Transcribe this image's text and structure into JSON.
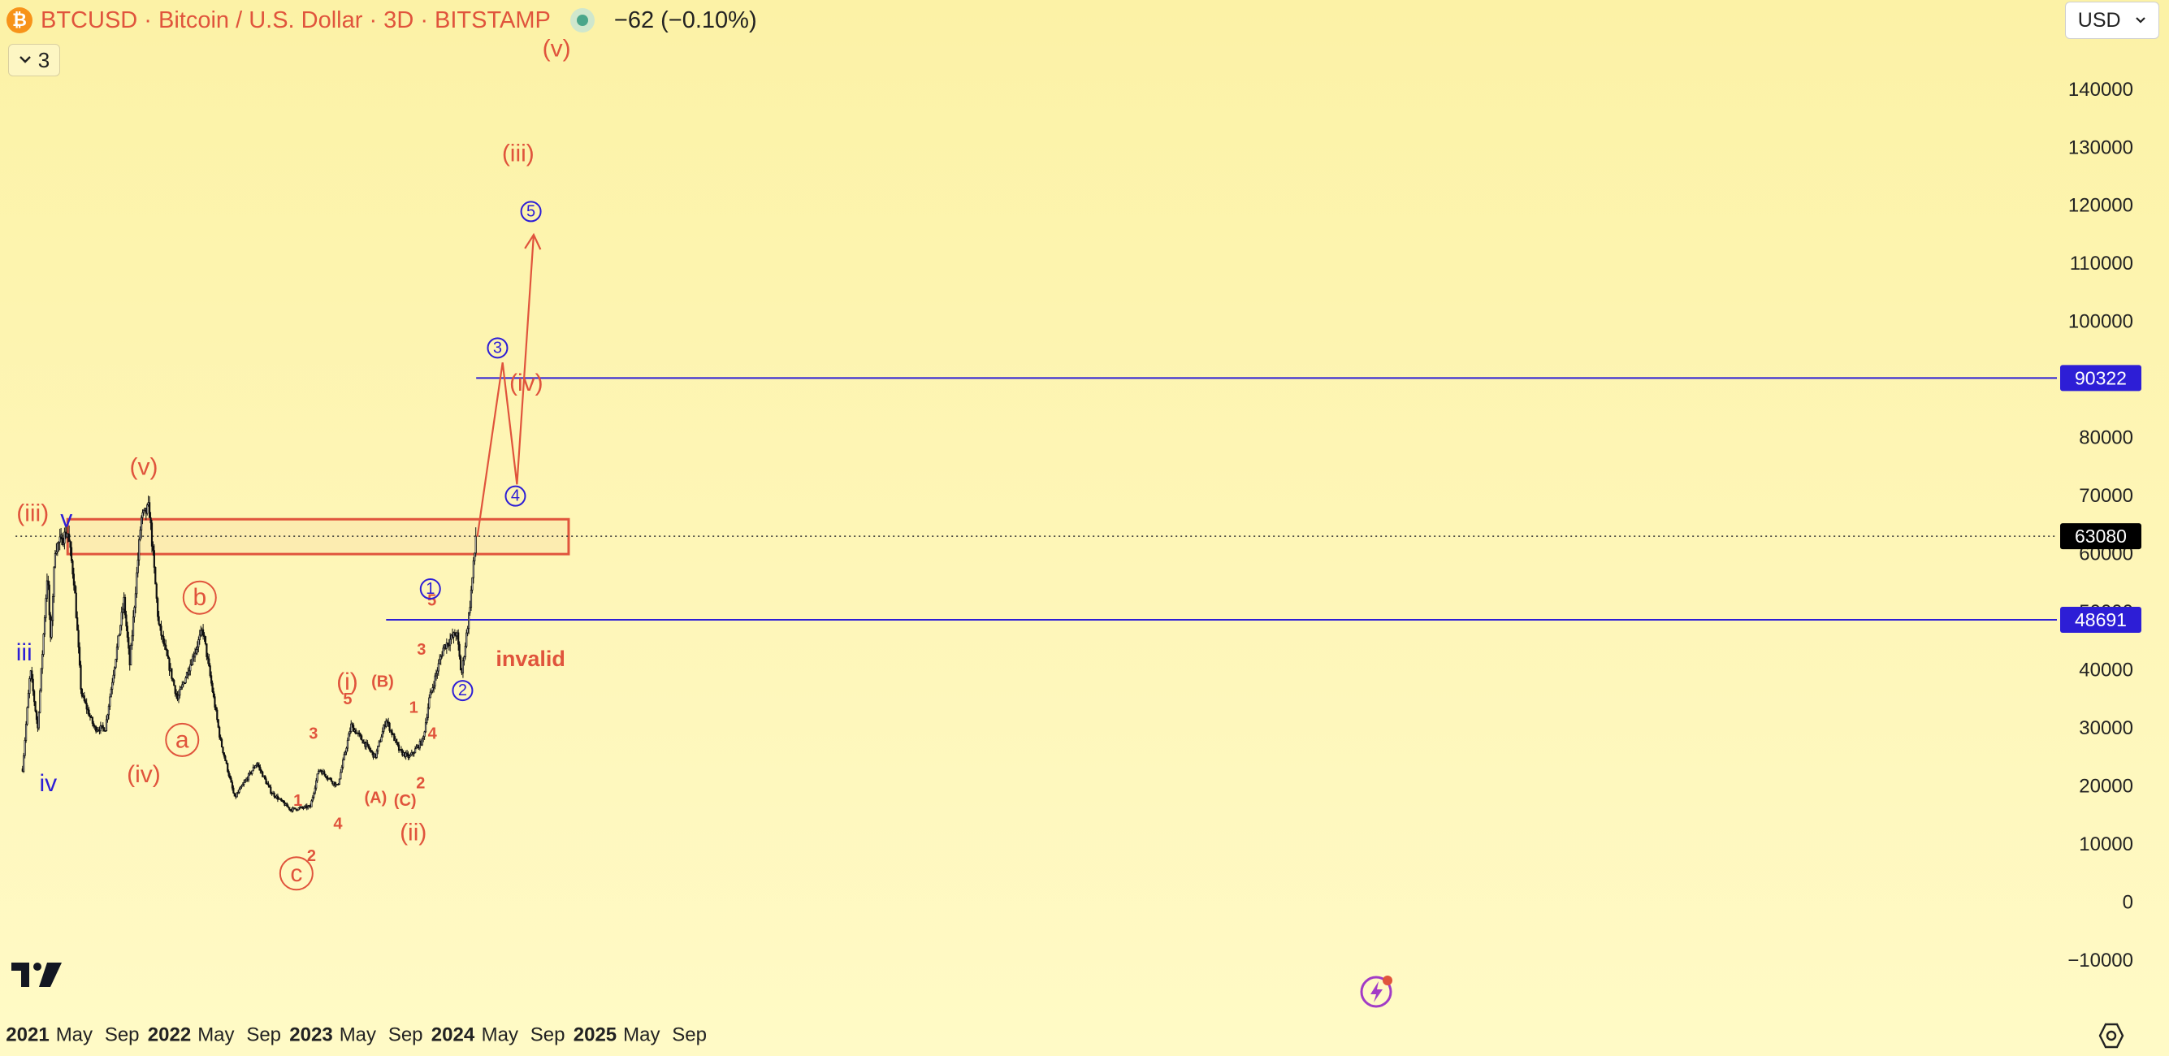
{
  "header": {
    "logo_icon": "bitcoin-icon",
    "title": "BTCUSD · Bitcoin / U.S. Dollar · 3D · BITSTAMP",
    "status_icon": "market-status-dot-icon",
    "change": "−62 (−0.10%)"
  },
  "indicator_toggle": {
    "icon": "chevron-down-icon",
    "count": "3"
  },
  "currency_select": {
    "value": "USD",
    "icon": "chevron-down-icon"
  },
  "footer": {
    "logo_icon": "tradingview-logo-icon",
    "flash_icon": "lightning-icon",
    "settings_icon": "gear-icon"
  },
  "colors": {
    "background": "#fdf4b0",
    "candles": "#111111",
    "wave_red": "#e0543c",
    "wave_blue": "#2d1ed6",
    "label_current": "#000000",
    "label_level": "#2d1ed6"
  },
  "chart_data": {
    "type": "candlestick",
    "symbol": "BTCUSD",
    "timeframe": "3D",
    "exchange": "BITSTAMP",
    "y_axis": {
      "ticks": [
        "140000",
        "130000",
        "120000",
        "110000",
        "100000",
        "90000",
        "80000",
        "70000",
        "60000",
        "50000",
        "40000",
        "30000",
        "20000",
        "10000",
        "0",
        "−10000"
      ],
      "range": [
        -15000,
        150000
      ]
    },
    "x_axis": {
      "ticks": [
        {
          "label": "2021",
          "date": "2021-01-01",
          "major": true
        },
        {
          "label": "May",
          "date": "2021-05-01",
          "major": false
        },
        {
          "label": "Sep",
          "date": "2021-09-01",
          "major": false
        },
        {
          "label": "2022",
          "date": "2022-01-01",
          "major": true
        },
        {
          "label": "May",
          "date": "2022-05-01",
          "major": false
        },
        {
          "label": "Sep",
          "date": "2022-09-01",
          "major": false
        },
        {
          "label": "2023",
          "date": "2023-01-01",
          "major": true
        },
        {
          "label": "May",
          "date": "2023-05-01",
          "major": false
        },
        {
          "label": "Sep",
          "date": "2023-09-01",
          "major": false
        },
        {
          "label": "2024",
          "date": "2024-01-01",
          "major": true
        },
        {
          "label": "May",
          "date": "2024-05-01",
          "major": false
        },
        {
          "label": "Sep",
          "date": "2024-09-01",
          "major": false
        },
        {
          "label": "2025",
          "date": "2025-01-01",
          "major": true
        },
        {
          "label": "May",
          "date": "2025-05-01",
          "major": false
        },
        {
          "label": "Sep",
          "date": "2025-09-01",
          "major": false
        }
      ]
    },
    "price_path": [
      [
        "2020-12-19",
        23000
      ],
      [
        "2021-01-08",
        40000
      ],
      [
        "2021-01-27",
        30000
      ],
      [
        "2021-02-21",
        57000
      ],
      [
        "2021-03-01",
        45000
      ],
      [
        "2021-03-13",
        61000
      ],
      [
        "2021-04-14",
        64000
      ],
      [
        "2021-05-01",
        55000
      ],
      [
        "2021-05-19",
        36000
      ],
      [
        "2021-06-22",
        30000
      ],
      [
        "2021-07-20",
        30000
      ],
      [
        "2021-09-06",
        52000
      ],
      [
        "2021-09-21",
        41000
      ],
      [
        "2021-10-20",
        66000
      ],
      [
        "2021-11-10",
        68000
      ],
      [
        "2021-12-04",
        48000
      ],
      [
        "2022-01-22",
        35000
      ],
      [
        "2022-03-28",
        47000
      ],
      [
        "2022-05-12",
        28000
      ],
      [
        "2022-06-18",
        18000
      ],
      [
        "2022-08-14",
        24000
      ],
      [
        "2022-09-20",
        19000
      ],
      [
        "2022-11-09",
        16000
      ],
      [
        "2022-12-30",
        16500
      ],
      [
        "2023-01-21",
        23000
      ],
      [
        "2023-03-10",
        20000
      ],
      [
        "2023-04-14",
        30500
      ],
      [
        "2023-06-15",
        25000
      ],
      [
        "2023-07-13",
        31500
      ],
      [
        "2023-08-17",
        26000
      ],
      [
        "2023-09-11",
        25000
      ],
      [
        "2023-10-16",
        28000
      ],
      [
        "2023-11-01",
        35000
      ],
      [
        "2023-12-08",
        44000
      ],
      [
        "2024-01-11",
        46500
      ],
      [
        "2024-01-23",
        39000
      ],
      [
        "2024-02-12",
        50000
      ],
      [
        "2024-03-01",
        63080
      ]
    ],
    "last_price": 63080,
    "horizontal_levels": [
      {
        "label": "90322",
        "value": 90322,
        "from": "2024-03-01"
      },
      {
        "label": "48691",
        "value": 48691,
        "from": "2023-07-13"
      },
      {
        "label": "63080",
        "value": 63080,
        "style": "dotted",
        "from": "2020-12-01"
      }
    ],
    "resistance_zone": {
      "from": "2021-04-14",
      "to": "2024-10-25",
      "low": 60000,
      "high": 66000
    },
    "projection_path": [
      [
        "2024-03-04",
        63000
      ],
      [
        "2024-05-08",
        93000
      ],
      [
        "2024-06-14",
        72000
      ],
      [
        "2024-07-27",
        115000
      ]
    ],
    "wave_labels": [
      {
        "text": "(iii)",
        "date": "2021-01-14",
        "price": 67000,
        "color": "red",
        "style": "paren"
      },
      {
        "text": "v",
        "date": "2021-04-11",
        "price": 66000,
        "color": "blue",
        "style": "plain"
      },
      {
        "text": "iii",
        "date": "2020-12-23",
        "price": 43000,
        "color": "blue",
        "style": "plain"
      },
      {
        "text": "iv",
        "date": "2021-02-23",
        "price": 20500,
        "color": "blue",
        "style": "plain"
      },
      {
        "text": "(v)",
        "date": "2021-10-27",
        "price": 75000,
        "color": "red",
        "style": "paren"
      },
      {
        "text": "(iv)",
        "date": "2021-10-27",
        "price": 22000,
        "color": "red",
        "style": "paren"
      },
      {
        "text": "b",
        "date": "2022-03-20",
        "price": 52500,
        "color": "red",
        "style": "circle"
      },
      {
        "text": "a",
        "date": "2022-02-03",
        "price": 28000,
        "color": "red",
        "style": "circle"
      },
      {
        "text": "c",
        "date": "2022-11-24",
        "price": 5000,
        "color": "red",
        "style": "circle"
      },
      {
        "text": "1",
        "date": "2022-11-28",
        "price": 17500,
        "color": "red",
        "style": "small"
      },
      {
        "text": "2",
        "date": "2023-01-02",
        "price": 8000,
        "color": "red",
        "style": "small"
      },
      {
        "text": "3",
        "date": "2023-01-07",
        "price": 29000,
        "color": "red",
        "style": "small"
      },
      {
        "text": "4",
        "date": "2023-03-11",
        "price": 13500,
        "color": "red",
        "style": "small"
      },
      {
        "text": "5",
        "date": "2023-04-05",
        "price": 35000,
        "color": "red",
        "style": "small"
      },
      {
        "text": "(i)",
        "date": "2023-04-04",
        "price": 38000,
        "color": "red",
        "style": "paren"
      },
      {
        "text": "(B)",
        "date": "2023-07-04",
        "price": 38000,
        "color": "red",
        "style": "small"
      },
      {
        "text": "(A)",
        "date": "2023-06-16",
        "price": 18000,
        "color": "red",
        "style": "small"
      },
      {
        "text": "(C)",
        "date": "2023-08-31",
        "price": 17500,
        "color": "red",
        "style": "small"
      },
      {
        "text": "(ii)",
        "date": "2023-09-21",
        "price": 12000,
        "color": "red",
        "style": "paren"
      },
      {
        "text": "1",
        "date": "2023-09-22",
        "price": 33500,
        "color": "red",
        "style": "small"
      },
      {
        "text": "2",
        "date": "2023-10-10",
        "price": 20500,
        "color": "red",
        "style": "small"
      },
      {
        "text": "3",
        "date": "2023-10-12",
        "price": 43500,
        "color": "red",
        "style": "small"
      },
      {
        "text": "4",
        "date": "2023-11-09",
        "price": 29000,
        "color": "red",
        "style": "small"
      },
      {
        "text": "5",
        "date": "2023-11-08",
        "price": 52000,
        "color": "red",
        "style": "small"
      },
      {
        "text": "1",
        "date": "2023-11-04",
        "price": 54000,
        "color": "blue",
        "style": "circle"
      },
      {
        "text": "2",
        "date": "2024-01-26",
        "price": 36500,
        "color": "blue",
        "style": "circle"
      },
      {
        "text": "3",
        "date": "2024-04-25",
        "price": 95500,
        "color": "blue",
        "style": "circle"
      },
      {
        "text": "4",
        "date": "2024-06-10",
        "price": 70000,
        "color": "blue",
        "style": "circle"
      },
      {
        "text": "5",
        "date": "2024-07-20",
        "price": 119000,
        "color": "blue",
        "style": "circle"
      },
      {
        "text": "(iii)",
        "date": "2024-06-17",
        "price": 129000,
        "color": "red",
        "style": "paren"
      },
      {
        "text": "(iv)",
        "date": "2024-07-08",
        "price": 89500,
        "color": "red",
        "style": "paren"
      },
      {
        "text": "(v)",
        "date": "2024-09-24",
        "price": 147000,
        "color": "red",
        "style": "paren"
      },
      {
        "text": "invalid",
        "date": "2024-07-19",
        "price": 42000,
        "color": "red",
        "style": "bold"
      }
    ],
    "grid": false,
    "legend": "none"
  }
}
